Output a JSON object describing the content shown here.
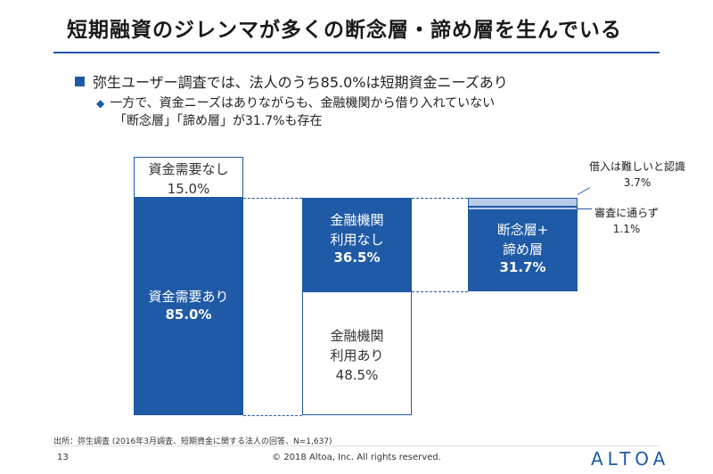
{
  "title": "短期融資のジレンマが多くの断念層・諦め層を生んでいる",
  "bullet_main": "弥生ユーザー調査では、法人のうち85.0%は短期資金ニーズあり",
  "bullet_sub_line1": "一方で、資金ニーズはありながらも、金融機関から借り入れていない",
  "bullet_sub_line2": "「断念層」「諦め層」が31.7%も存在",
  "bars": {
    "need_none": {
      "label": "資金需要なし",
      "value": "15.0%"
    },
    "need_yes": {
      "label": "資金需要あり",
      "value": "85.0%"
    },
    "bank_none": {
      "label1": "金融機関",
      "label2": "利用なし",
      "value": "36.5%"
    },
    "bank_yes": {
      "label1": "金融機関",
      "label2": "利用あり",
      "value": "48.5%"
    },
    "giveup": {
      "label1": "断念層+",
      "label2": "諦め層",
      "value": "31.7%"
    }
  },
  "notes": {
    "hard": {
      "label": "借入は難しいと認識",
      "value": "3.7%"
    },
    "rejected": {
      "label": "審査に通らず",
      "value": "1.1%"
    }
  },
  "source": "出所：弥生調査 (2016年3月調査、短期資金に関する法人の回答、N=1,637)",
  "page_number": "13",
  "copyright": "© 2018 Altoa, Inc.  All rights reserved.",
  "logo": "ALTOA",
  "colors": {
    "primary": "#1f5aa6",
    "light": "#b8cce8"
  }
}
